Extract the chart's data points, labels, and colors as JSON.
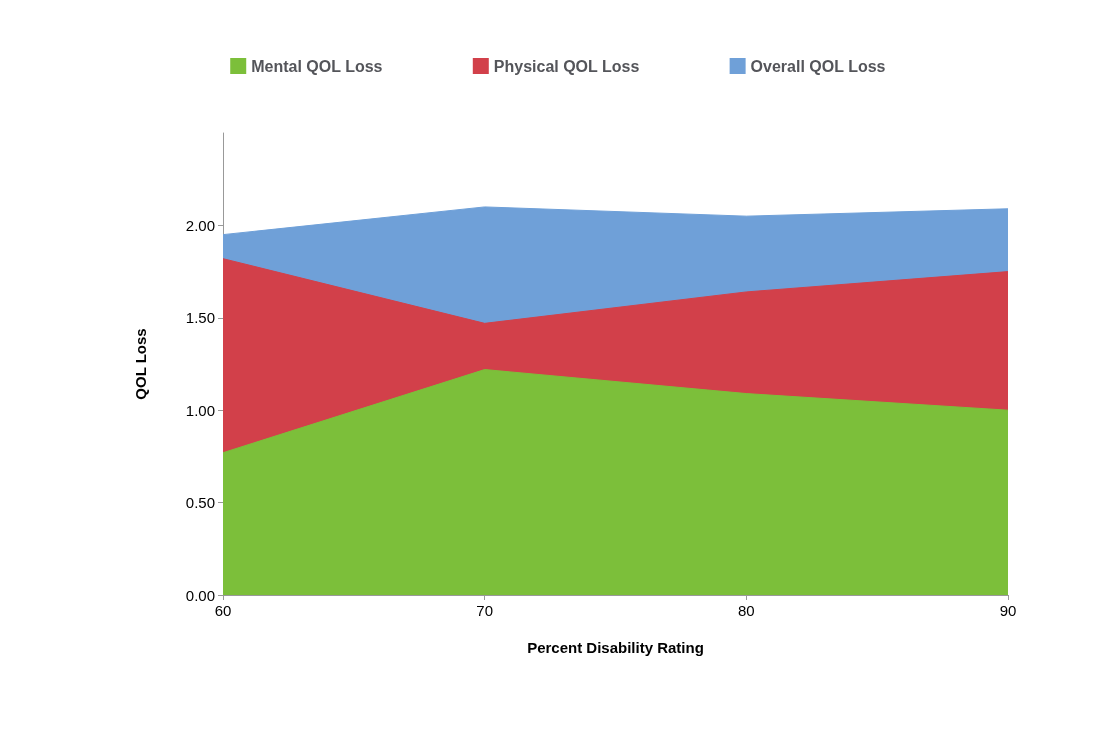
{
  "chart_data": {
    "type": "area",
    "xlabel": "Percent Disability Rating",
    "ylabel": "QOL Loss",
    "x": [
      60,
      70,
      80,
      90
    ],
    "series": [
      {
        "name": "Mental QOL Loss",
        "color": "#7cbf3a",
        "values": [
          0.77,
          1.22,
          1.09,
          1.0
        ]
      },
      {
        "name": "Physical QOL Loss",
        "color": "#d2404a",
        "values": [
          1.82,
          1.47,
          1.64,
          1.75
        ]
      },
      {
        "name": "Overall QOL Loss",
        "color": "#6fa0d8",
        "values": [
          1.95,
          2.1,
          2.05,
          2.09
        ]
      }
    ],
    "xlim": [
      60,
      90
    ],
    "xticks": [
      60,
      70,
      80,
      90
    ],
    "ylim": [
      0,
      2.5
    ],
    "yticks": [
      {
        "value": 0,
        "label": "0.00"
      },
      {
        "value": 0.5,
        "label": "0.50"
      },
      {
        "value": 1,
        "label": "1.00"
      },
      {
        "value": 1.5,
        "label": "1.50"
      },
      {
        "value": 2,
        "label": "2.00"
      }
    ],
    "legend": "top",
    "grid": false
  }
}
